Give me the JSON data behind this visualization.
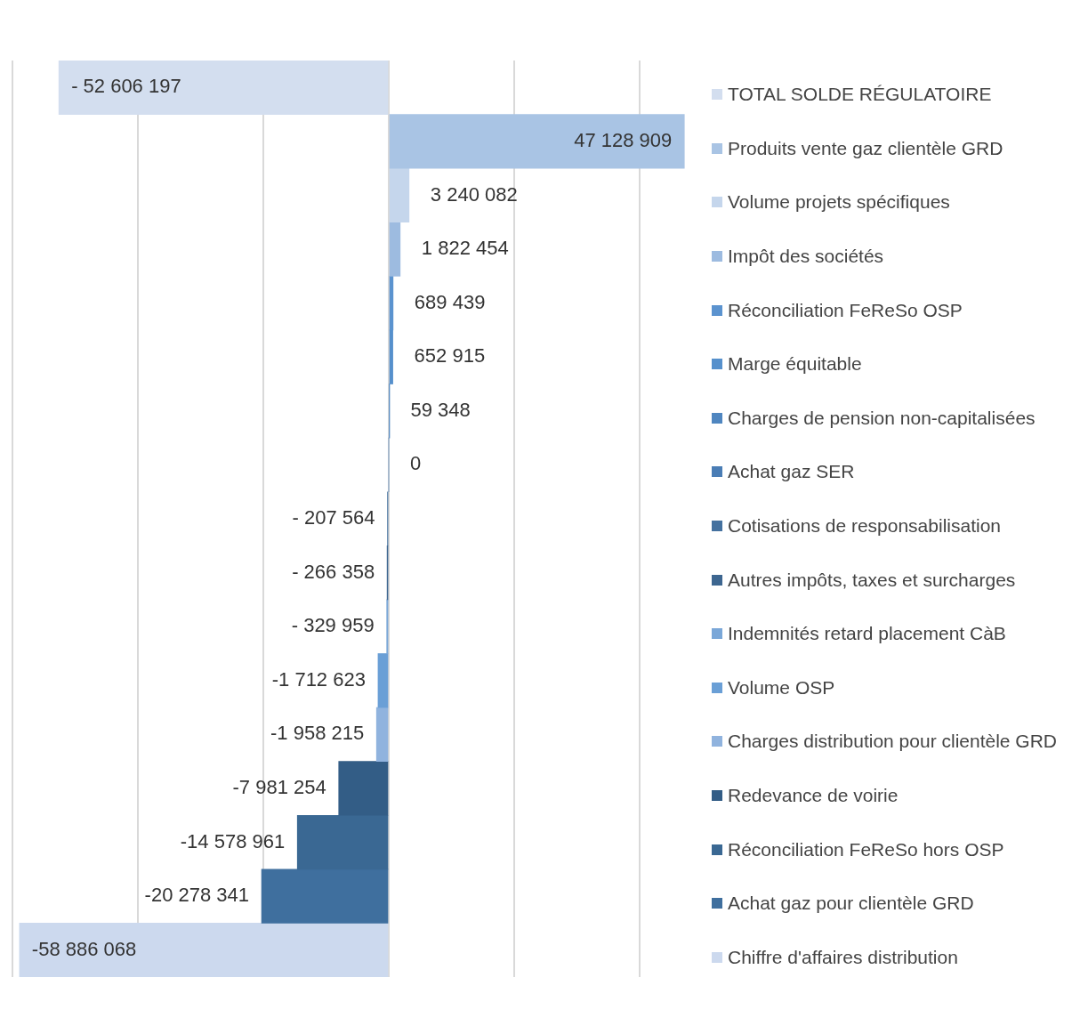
{
  "chart_data": {
    "type": "bar",
    "orientation": "horizontal",
    "stacked": true,
    "grid": "x",
    "legend": "right",
    "tick_labels": false,
    "categories": [
      null,
      null,
      null,
      null,
      null,
      null,
      null,
      null,
      null,
      null,
      null,
      null,
      null,
      null,
      null,
      null,
      null
    ],
    "series": [
      {
        "name": "TOTAL SOLDE RÉGULATOIRE",
        "color": "#d3deef",
        "values": [
          -52606197,
          null,
          null,
          null,
          null,
          null,
          null,
          null,
          null,
          null,
          null,
          null,
          null,
          null,
          null,
          null,
          null
        ],
        "value_labels": [
          "- 52 606 197",
          null,
          null,
          null,
          null,
          null,
          null,
          null,
          null,
          null,
          null,
          null,
          null,
          null,
          null,
          null,
          null
        ]
      },
      {
        "name": "Produits vente gaz clientèle GRD",
        "color": "#a9c4e4",
        "values": [
          null,
          47128909,
          null,
          null,
          null,
          null,
          null,
          null,
          null,
          null,
          null,
          null,
          null,
          null,
          null,
          null,
          null
        ],
        "value_labels": [
          null,
          "47 128 909",
          null,
          null,
          null,
          null,
          null,
          null,
          null,
          null,
          null,
          null,
          null,
          null,
          null,
          null,
          null
        ]
      },
      {
        "name": "Volume projets spécifiques",
        "color": "#c5d6ec",
        "values": [
          null,
          null,
          3240082,
          null,
          null,
          null,
          null,
          null,
          null,
          null,
          null,
          null,
          null,
          null,
          null,
          null,
          null
        ],
        "value_labels": [
          null,
          null,
          "3 240 082",
          null,
          null,
          null,
          null,
          null,
          null,
          null,
          null,
          null,
          null,
          null,
          null,
          null,
          null
        ]
      },
      {
        "name": "Impôt des sociétés",
        "color": "#9dbbe0",
        "values": [
          null,
          null,
          null,
          1822454,
          null,
          null,
          null,
          null,
          null,
          null,
          null,
          null,
          null,
          null,
          null,
          null,
          null
        ],
        "value_labels": [
          null,
          null,
          null,
          "1 822 454",
          null,
          null,
          null,
          null,
          null,
          null,
          null,
          null,
          null,
          null,
          null,
          null,
          null
        ]
      },
      {
        "name": "Réconciliation FeReSo OSP",
        "color": "#5b93cf",
        "values": [
          null,
          null,
          null,
          null,
          689439,
          null,
          null,
          null,
          null,
          null,
          null,
          null,
          null,
          null,
          null,
          null,
          null
        ],
        "value_labels": [
          null,
          null,
          null,
          null,
          "689 439",
          null,
          null,
          null,
          null,
          null,
          null,
          null,
          null,
          null,
          null,
          null,
          null
        ]
      },
      {
        "name": "Marge équitable",
        "color": "#5690cc",
        "values": [
          null,
          null,
          null,
          null,
          null,
          652915,
          null,
          null,
          null,
          null,
          null,
          null,
          null,
          null,
          null,
          null,
          null
        ],
        "value_labels": [
          null,
          null,
          null,
          null,
          null,
          "652 915",
          null,
          null,
          null,
          null,
          null,
          null,
          null,
          null,
          null,
          null,
          null
        ]
      },
      {
        "name": "Charges de pension non-capitalisées",
        "color": "#4f86c0",
        "values": [
          null,
          null,
          null,
          null,
          null,
          null,
          59348,
          null,
          null,
          null,
          null,
          null,
          null,
          null,
          null,
          null,
          null
        ],
        "value_labels": [
          null,
          null,
          null,
          null,
          null,
          null,
          "59 348",
          null,
          null,
          null,
          null,
          null,
          null,
          null,
          null,
          null,
          null
        ]
      },
      {
        "name": "Achat gaz SER",
        "color": "#4a7db5",
        "values": [
          null,
          null,
          null,
          null,
          null,
          null,
          null,
          0,
          null,
          null,
          null,
          null,
          null,
          null,
          null,
          null,
          null
        ],
        "value_labels": [
          null,
          null,
          null,
          null,
          null,
          null,
          null,
          "0",
          null,
          null,
          null,
          null,
          null,
          null,
          null,
          null,
          null
        ]
      },
      {
        "name": "Cotisations de responsabilisation",
        "color": "#44719f",
        "values": [
          null,
          null,
          null,
          null,
          null,
          null,
          null,
          null,
          -207564,
          null,
          null,
          null,
          null,
          null,
          null,
          null,
          null
        ],
        "value_labels": [
          null,
          null,
          null,
          null,
          null,
          null,
          null,
          null,
          "- 207 564",
          null,
          null,
          null,
          null,
          null,
          null,
          null,
          null
        ]
      },
      {
        "name": "Autres impôts, taxes et surcharges",
        "color": "#3d6690",
        "values": [
          null,
          null,
          null,
          null,
          null,
          null,
          null,
          null,
          null,
          -266358,
          null,
          null,
          null,
          null,
          null,
          null,
          null
        ],
        "value_labels": [
          null,
          null,
          null,
          null,
          null,
          null,
          null,
          null,
          null,
          "- 266 358",
          null,
          null,
          null,
          null,
          null,
          null,
          null
        ]
      },
      {
        "name": "Indemnités retard placement CàB",
        "color": "#7aa7d8",
        "values": [
          null,
          null,
          null,
          null,
          null,
          null,
          null,
          null,
          null,
          null,
          -329959,
          null,
          null,
          null,
          null,
          null,
          null
        ],
        "value_labels": [
          null,
          null,
          null,
          null,
          null,
          null,
          null,
          null,
          null,
          null,
          "- 329 959",
          null,
          null,
          null,
          null,
          null,
          null
        ]
      },
      {
        "name": "Volume OSP",
        "color": "#6a9fd6",
        "values": [
          null,
          null,
          null,
          null,
          null,
          null,
          null,
          null,
          null,
          null,
          null,
          -1712623,
          null,
          null,
          null,
          null,
          null
        ],
        "value_labels": [
          null,
          null,
          null,
          null,
          null,
          null,
          null,
          null,
          null,
          null,
          null,
          "-1 712 623",
          null,
          null,
          null,
          null,
          null
        ]
      },
      {
        "name": "Charges distribution pour clientèle GRD",
        "color": "#90b3de",
        "values": [
          null,
          null,
          null,
          null,
          null,
          null,
          null,
          null,
          null,
          null,
          null,
          null,
          -1958215,
          null,
          null,
          null,
          null
        ],
        "value_labels": [
          null,
          null,
          null,
          null,
          null,
          null,
          null,
          null,
          null,
          null,
          null,
          null,
          "-1 958 215",
          null,
          null,
          null,
          null
        ]
      },
      {
        "name": "Redevance de voirie",
        "color": "#335d86",
        "values": [
          null,
          null,
          null,
          null,
          null,
          null,
          null,
          null,
          null,
          null,
          null,
          null,
          null,
          -7981254,
          null,
          null,
          null
        ],
        "value_labels": [
          null,
          null,
          null,
          null,
          null,
          null,
          null,
          null,
          null,
          null,
          null,
          null,
          null,
          "-7 981 254",
          null,
          null,
          null
        ]
      },
      {
        "name": "Réconciliation FeReSo hors OSP",
        "color": "#3a6893",
        "values": [
          null,
          null,
          null,
          null,
          null,
          null,
          null,
          null,
          null,
          null,
          null,
          null,
          null,
          null,
          -14578961,
          null,
          null
        ],
        "value_labels": [
          null,
          null,
          null,
          null,
          null,
          null,
          null,
          null,
          null,
          null,
          null,
          null,
          null,
          null,
          "-14 578 961",
          null,
          null
        ]
      },
      {
        "name": "Achat gaz pour clientèle GRD",
        "color": "#3f6f9e",
        "values": [
          null,
          null,
          null,
          null,
          null,
          null,
          null,
          null,
          null,
          null,
          null,
          null,
          null,
          null,
          null,
          -20278341,
          null
        ],
        "value_labels": [
          null,
          null,
          null,
          null,
          null,
          null,
          null,
          null,
          null,
          null,
          null,
          null,
          null,
          null,
          null,
          "-20 278 341",
          null
        ]
      },
      {
        "name": "Chiffre d'affaires distribution",
        "color": "#ccd9ee",
        "values": [
          null,
          null,
          null,
          null,
          null,
          null,
          null,
          null,
          null,
          null,
          null,
          null,
          null,
          null,
          null,
          null,
          -58886068
        ],
        "value_labels": [
          null,
          null,
          null,
          null,
          null,
          null,
          null,
          null,
          null,
          null,
          null,
          null,
          null,
          null,
          null,
          null,
          "-58 886 068"
        ]
      }
    ]
  }
}
